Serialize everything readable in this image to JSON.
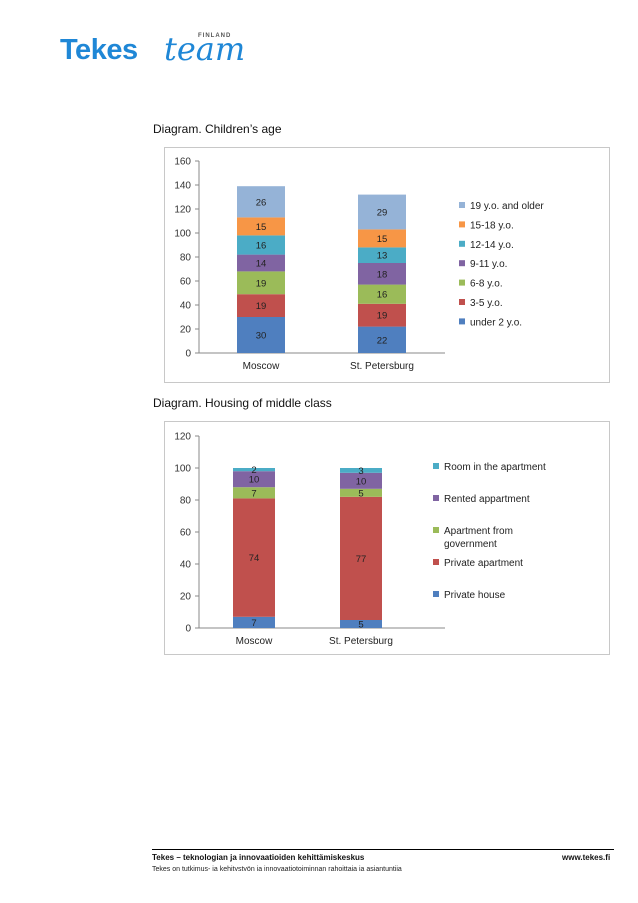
{
  "brand": {
    "name": "Tekes",
    "team": "team",
    "country": "FINLAND",
    "color": "#1f87d6"
  },
  "footer": {
    "org": "Tekes – teknologian ja innovaatioiden kehittämiskeskus",
    "sub": "Tekes on tutkimus- ja kehitystyön ja innovaatiotoiminnan rahoittaja ja asiantuntija",
    "url": "www.tekes.fi"
  },
  "chart_data": [
    {
      "type": "bar",
      "stacked": true,
      "title": "Diagram. Children’s age",
      "categories": [
        "Moscow",
        "St. Petersburg"
      ],
      "ylim": [
        0,
        160
      ],
      "yticks": [
        0,
        20,
        40,
        60,
        80,
        100,
        120,
        140,
        160
      ],
      "legend_position": "right",
      "series": [
        {
          "name": "under 2 y.o.",
          "values": [
            30,
            22
          ],
          "color": "#4f7fbf"
        },
        {
          "name": "3-5 y.o.",
          "values": [
            19,
            19
          ],
          "color": "#c0504d"
        },
        {
          "name": "6-8 y.o.",
          "values": [
            19,
            16
          ],
          "color": "#9bbb59"
        },
        {
          "name": "9-11 y.o.",
          "values": [
            14,
            18
          ],
          "color": "#8064a2"
        },
        {
          "name": "12-14 y.o.",
          "values": [
            16,
            13
          ],
          "color": "#4bacc6"
        },
        {
          "name": "15-18 y.o.",
          "values": [
            15,
            15
          ],
          "color": "#f79646"
        },
        {
          "name": "19 y.o. and older",
          "values": [
            26,
            29
          ],
          "color": "#95b3d7"
        }
      ]
    },
    {
      "type": "bar",
      "stacked": true,
      "title": "Diagram. Housing of middle class",
      "categories": [
        "Moscow",
        "St. Petersburg"
      ],
      "ylim": [
        0,
        120
      ],
      "yticks": [
        0,
        20,
        40,
        60,
        80,
        100,
        120
      ],
      "legend_position": "right",
      "series": [
        {
          "name": "Private house",
          "values": [
            7,
            5
          ],
          "color": "#4f7fbf"
        },
        {
          "name": "Private apartment",
          "values": [
            74,
            77
          ],
          "color": "#c0504d"
        },
        {
          "name": "Apartment from government",
          "legend_lines": [
            "Apartment from",
            "government"
          ],
          "values": [
            7,
            5
          ],
          "color": "#9bbb59"
        },
        {
          "name": "Rented appartment",
          "values": [
            10,
            10
          ],
          "color": "#8064a2"
        },
        {
          "name": "Room in the apartment",
          "values": [
            2,
            3
          ],
          "color": "#4bacc6"
        }
      ]
    }
  ]
}
